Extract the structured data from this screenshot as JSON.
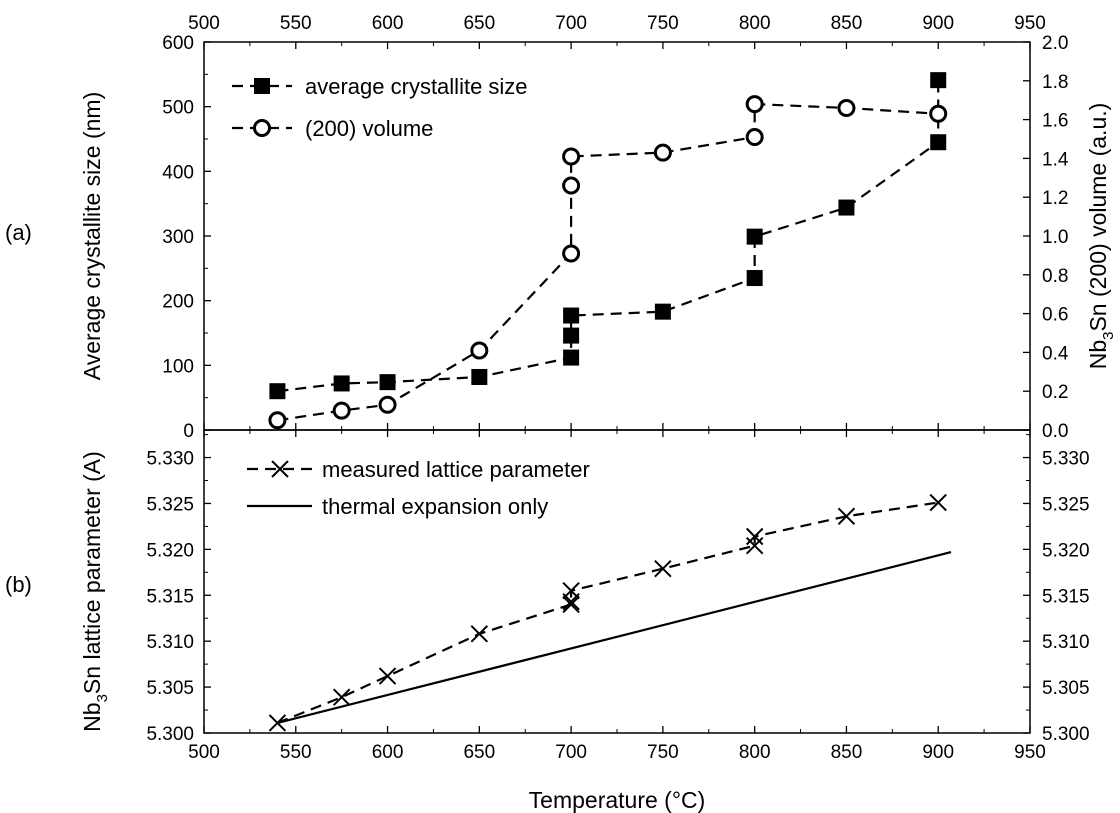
{
  "panel_labels": [
    "(a)",
    "(b)"
  ],
  "xlabel": "Temperature (°C)",
  "chart_data": [
    {
      "panel": "(a)",
      "type": "line",
      "x_range": [
        500,
        950
      ],
      "x_ticks": [
        500,
        550,
        600,
        650,
        700,
        750,
        800,
        850,
        900,
        950
      ],
      "y_left": {
        "label": "Average crystallite size (nm)",
        "range": [
          0,
          600
        ],
        "ticks": [
          0,
          100,
          200,
          300,
          400,
          500,
          600
        ]
      },
      "y_right": {
        "label_main": "Nb",
        "label_sub": "3",
        "label_rest": "Sn (200) volume (a.u.)",
        "range": [
          0,
          2.0
        ],
        "ticks": [
          "0.0",
          "0.2",
          "0.4",
          "0.6",
          "0.8",
          "1.0",
          "1.2",
          "1.4",
          "1.6",
          "1.8",
          "2.0"
        ]
      },
      "legend_position": "top-left",
      "series": [
        {
          "name": "average crystallite size",
          "axis": "left",
          "marker": "filled-square",
          "line": "dashed",
          "points": [
            [
              540,
              60
            ],
            [
              575,
              72
            ],
            [
              600,
              74
            ],
            [
              650,
              82
            ],
            [
              700,
              112
            ],
            [
              700,
              146
            ],
            [
              700,
              177
            ],
            [
              750,
              183
            ],
            [
              800,
              235
            ],
            [
              800,
              299
            ],
            [
              850,
              344
            ],
            [
              900,
              445
            ],
            [
              900,
              541
            ]
          ]
        },
        {
          "name": "(200) volume",
          "axis": "right",
          "marker": "open-circle",
          "line": "dashed",
          "points": [
            [
              540,
              0.05
            ],
            [
              575,
              0.1
            ],
            [
              600,
              0.13
            ],
            [
              650,
              0.41
            ],
            [
              700,
              0.91
            ],
            [
              700,
              1.26
            ],
            [
              700,
              1.41
            ],
            [
              750,
              1.43
            ],
            [
              800,
              1.51
            ],
            [
              800,
              1.68
            ],
            [
              850,
              1.66
            ],
            [
              900,
              1.63
            ]
          ]
        }
      ]
    },
    {
      "panel": "(b)",
      "type": "line",
      "x_range": [
        500,
        950
      ],
      "x_ticks": [
        500,
        550,
        600,
        650,
        700,
        750,
        800,
        850,
        900,
        950
      ],
      "y_left": {
        "label_main": "Nb",
        "label_sub": "3",
        "label_rest": "Sn lattice parameter (A)",
        "range": [
          5.3,
          5.333
        ],
        "ticks": [
          "5.300",
          "5.305",
          "5.310",
          "5.315",
          "5.320",
          "5.325",
          "5.330"
        ]
      },
      "y_right": {
        "range": [
          5.3,
          5.333
        ],
        "ticks": [
          "5.300",
          "5.305",
          "5.310",
          "5.315",
          "5.320",
          "5.325",
          "5.330"
        ]
      },
      "legend_position": "top-left",
      "series": [
        {
          "name": "measured lattice parameter",
          "marker": "x",
          "line": "dashed",
          "points": [
            [
              540,
              5.3011
            ],
            [
              575,
              5.3039
            ],
            [
              600,
              5.3062
            ],
            [
              650,
              5.3108
            ],
            [
              700,
              5.314
            ],
            [
              700,
              5.3143
            ],
            [
              700,
              5.3155
            ],
            [
              750,
              5.3179
            ],
            [
              800,
              5.3204
            ],
            [
              800,
              5.3214
            ],
            [
              850,
              5.3236
            ],
            [
              900,
              5.3251
            ]
          ]
        },
        {
          "name": "thermal expansion only",
          "marker": "none",
          "line": "solid",
          "points": [
            [
              540,
              5.3011
            ],
            [
              907,
              5.3197
            ]
          ]
        }
      ]
    }
  ]
}
